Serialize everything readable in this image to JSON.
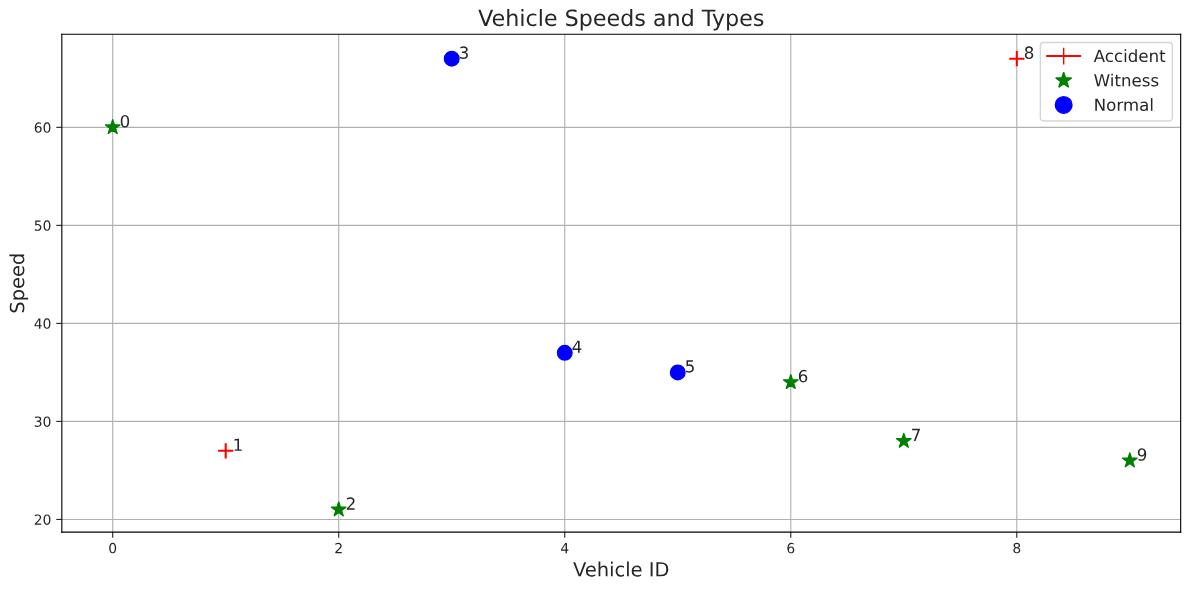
{
  "chart_data": {
    "type": "scatter",
    "title": "Vehicle Speeds and Types",
    "xlabel": "Vehicle ID",
    "ylabel": "Speed",
    "series": [
      {
        "name": "Accident",
        "color": "#ff0000",
        "marker": "cross",
        "x": [
          1,
          8
        ],
        "values": [
          27,
          67
        ]
      },
      {
        "name": "Witness",
        "color": "#008000",
        "marker": "star",
        "x": [
          0,
          2,
          6,
          7,
          9
        ],
        "values": [
          60,
          21,
          34,
          28,
          26
        ]
      },
      {
        "name": "Normal",
        "color": "#0000ff",
        "marker": "circle",
        "x": [
          3,
          4,
          5
        ],
        "values": [
          67,
          37,
          35
        ]
      }
    ],
    "annotations": [
      {
        "text": "0",
        "x": 0,
        "y": 60
      },
      {
        "text": "1",
        "x": 1,
        "y": 27
      },
      {
        "text": "2",
        "x": 2,
        "y": 21
      },
      {
        "text": "3",
        "x": 3,
        "y": 67
      },
      {
        "text": "4",
        "x": 4,
        "y": 37
      },
      {
        "text": "5",
        "x": 5,
        "y": 35
      },
      {
        "text": "6",
        "x": 6,
        "y": 34
      },
      {
        "text": "7",
        "x": 7,
        "y": 28
      },
      {
        "text": "8",
        "x": 8,
        "y": 67
      },
      {
        "text": "9",
        "x": 9,
        "y": 26
      }
    ],
    "xlim": [
      -0.45,
      9.45
    ],
    "ylim": [
      18.7,
      69.5
    ],
    "xticks": [
      0,
      2,
      4,
      6,
      8
    ],
    "yticks": [
      20,
      30,
      40,
      50,
      60
    ],
    "grid": true,
    "legend": "top right"
  }
}
